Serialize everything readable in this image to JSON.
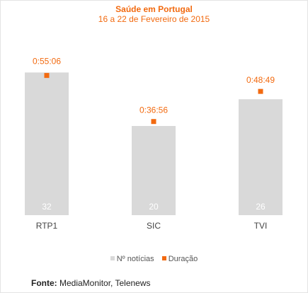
{
  "chart_data": {
    "type": "bar",
    "title": "Saúde em Portugal",
    "subtitle": "16 a 22 de Fevereiro de 2015",
    "categories": [
      "RTP1",
      "SIC",
      "TVI"
    ],
    "series": [
      {
        "name": "Nº notícias",
        "type": "bar",
        "values": [
          32,
          20,
          26
        ],
        "color": "#d9d9d9"
      },
      {
        "name": "Duração",
        "type": "marker",
        "values": [
          "0:55:06",
          "0:36:56",
          "0:48:49"
        ],
        "seconds": [
          3306,
          2216,
          2929
        ],
        "color": "#f26a10"
      }
    ],
    "legend": {
      "position": "bottom-center"
    },
    "grid": false
  },
  "source": {
    "label": "Fonte:",
    "text": "MediaMonitor, Telenews"
  }
}
